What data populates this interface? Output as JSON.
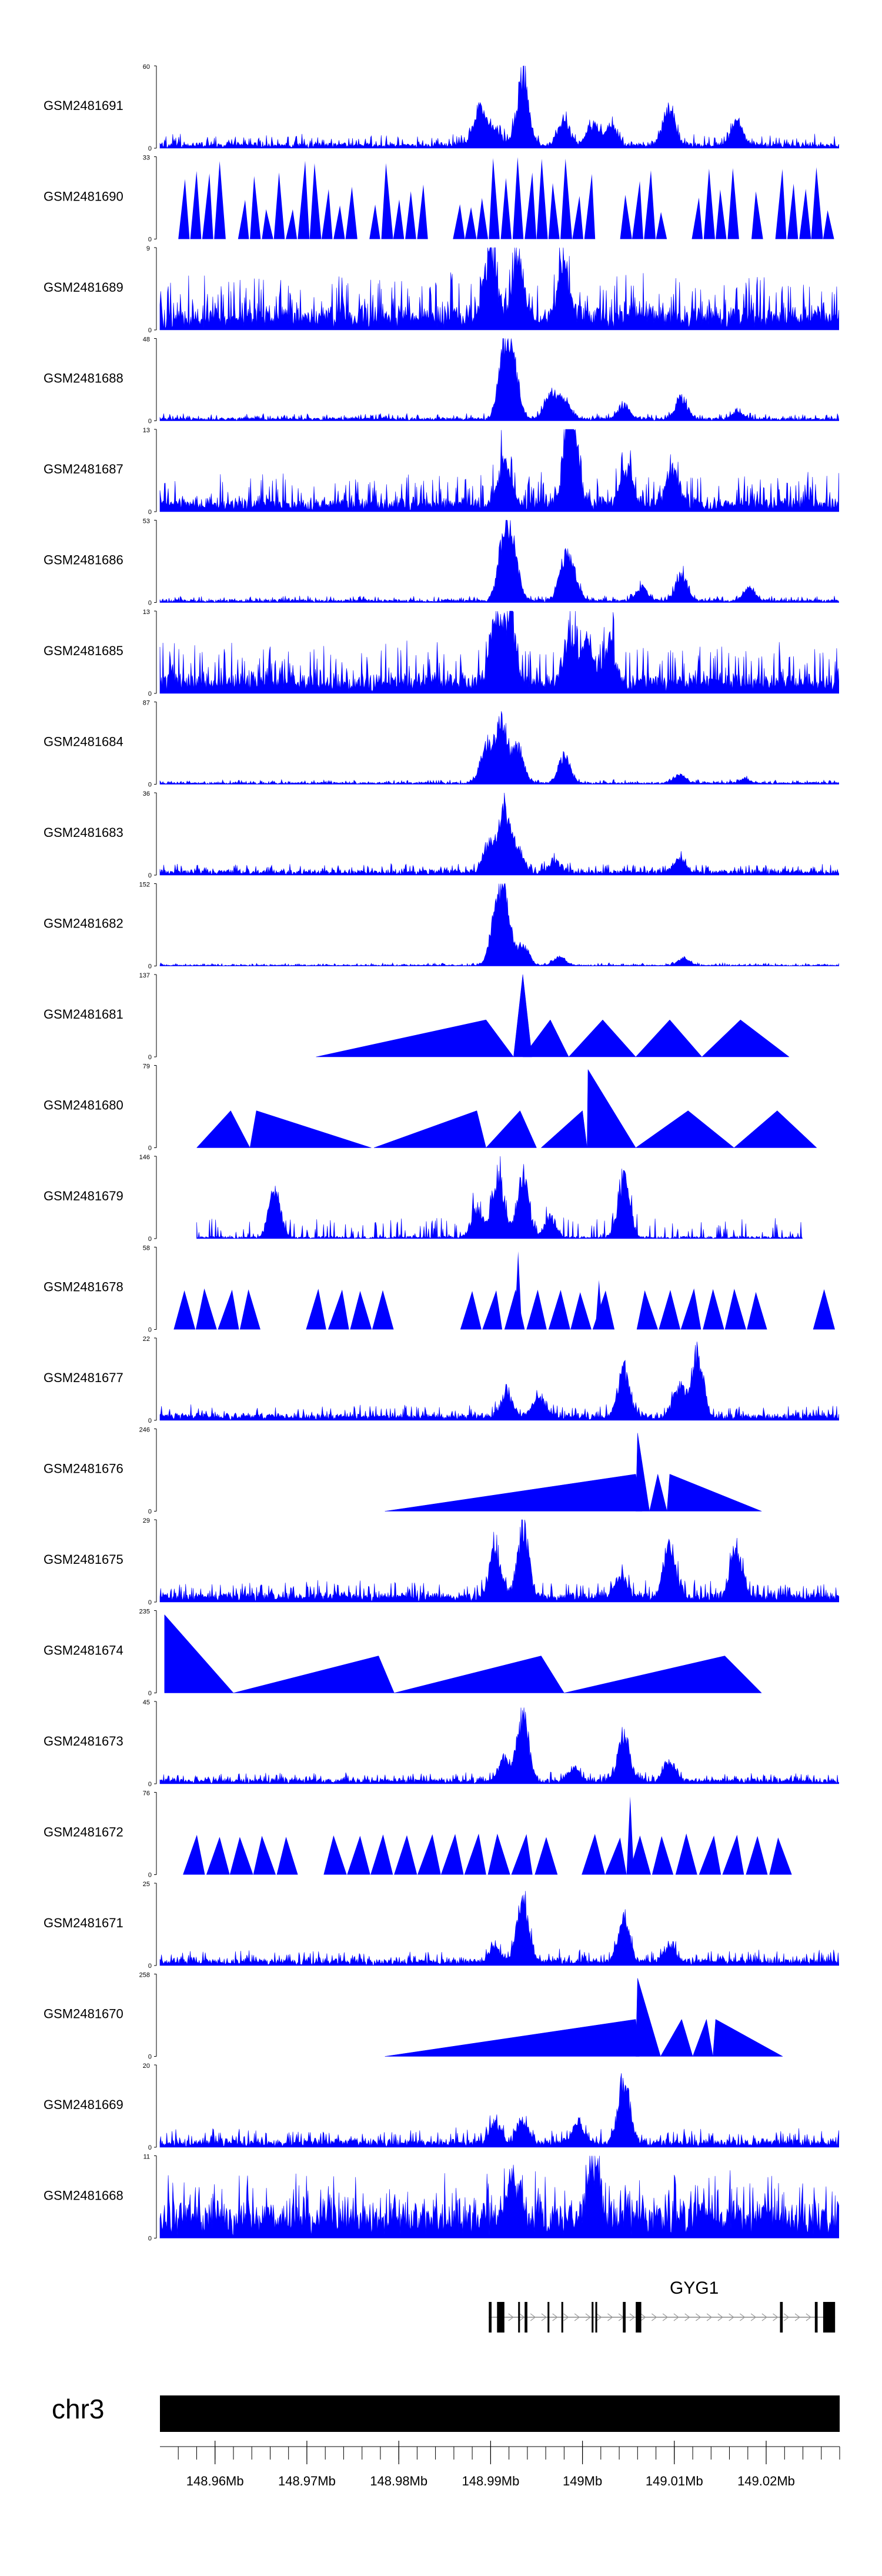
{
  "chart_data": {
    "type": "area",
    "title": "",
    "chromosome": "chr3",
    "x_unit": "Mb",
    "xlim": [
      148.954,
      149.028
    ],
    "axis_ticks": [
      {
        "value": 148.96,
        "label": "148.96Mb"
      },
      {
        "value": 148.97,
        "label": "148.97Mb"
      },
      {
        "value": 148.98,
        "label": "148.98Mb"
      },
      {
        "value": 148.99,
        "label": "148.99Mb"
      },
      {
        "value": 149.0,
        "label": "149Mb"
      },
      {
        "value": 149.01,
        "label": "149.01Mb"
      },
      {
        "value": 149.02,
        "label": "149.02Mb"
      }
    ],
    "minor_tick_step": 0.002,
    "tracks": [
      {
        "name": "GSM2481691",
        "ymax": 60,
        "ymax_label": "60",
        "ymin_label": "0",
        "mode": "dense",
        "baseline": 0.04,
        "noise": 0.14,
        "peaks": [
          [
            148.9888,
            0.55
          ],
          [
            148.9935,
            1.0
          ],
          [
            148.9905,
            0.25
          ],
          [
            148.998,
            0.35
          ],
          [
            149.0012,
            0.3
          ],
          [
            149.0032,
            0.25
          ],
          [
            149.0094,
            0.6
          ],
          [
            149.0168,
            0.35
          ]
        ]
      },
      {
        "name": "GSM2481690",
        "ymax": 33,
        "ymax_label": "33",
        "ymin_label": "0",
        "mode": "tri",
        "seed": 7,
        "count": 55,
        "lo": 0.3,
        "hi": 1.0
      },
      {
        "name": "GSM2481689",
        "ymax": 9,
        "ymax_label": "9",
        "ymin_label": "0",
        "mode": "dense",
        "baseline": 0.18,
        "noise": 0.55,
        "peaks": [
          [
            148.99,
            0.9
          ],
          [
            148.993,
            0.8
          ],
          [
            148.998,
            0.7
          ]
        ]
      },
      {
        "name": "GSM2481688",
        "ymax": 48,
        "ymax_label": "48",
        "ymin_label": "0",
        "mode": "dense",
        "baseline": 0.03,
        "noise": 0.07,
        "peaks": [
          [
            148.9915,
            0.95
          ],
          [
            148.9925,
            0.7
          ],
          [
            148.9965,
            0.4
          ],
          [
            148.998,
            0.3
          ],
          [
            149.0045,
            0.2
          ],
          [
            149.0108,
            0.3
          ],
          [
            149.017,
            0.1
          ]
        ]
      },
      {
        "name": "GSM2481687",
        "ymax": 13,
        "ymax_label": "13",
        "ymin_label": "0",
        "mode": "dense",
        "baseline": 0.1,
        "noise": 0.4,
        "peaks": [
          [
            148.9915,
            0.7
          ],
          [
            148.9985,
            0.95
          ],
          [
            148.999,
            0.7
          ],
          [
            149.0048,
            0.5
          ],
          [
            149.0098,
            0.5
          ]
        ]
      },
      {
        "name": "GSM2481686",
        "ymax": 53,
        "ymax_label": "53",
        "ymin_label": "0",
        "mode": "dense",
        "baseline": 0.03,
        "noise": 0.06,
        "peaks": [
          [
            148.9915,
            0.95
          ],
          [
            148.9925,
            0.6
          ],
          [
            148.998,
            0.55
          ],
          [
            148.999,
            0.35
          ],
          [
            149.0065,
            0.2
          ],
          [
            149.0108,
            0.4
          ],
          [
            149.0182,
            0.18
          ]
        ]
      },
      {
        "name": "GSM2481685",
        "ymax": 13,
        "ymax_label": "13",
        "ymin_label": "0",
        "mode": "dense",
        "baseline": 0.15,
        "noise": 0.5,
        "peaks": [
          [
            148.9905,
            0.85
          ],
          [
            148.992,
            1.0
          ],
          [
            148.9985,
            0.7
          ],
          [
            149.0005,
            0.6
          ],
          [
            149.003,
            0.6
          ]
        ]
      },
      {
        "name": "GSM2481684",
        "ymax": 87,
        "ymax_label": "87",
        "ymin_label": "0",
        "mode": "dense",
        "baseline": 0.02,
        "noise": 0.04,
        "peaks": [
          [
            148.9912,
            0.95
          ],
          [
            148.9895,
            0.55
          ],
          [
            148.993,
            0.5
          ],
          [
            148.998,
            0.4
          ],
          [
            149.0106,
            0.12
          ],
          [
            149.0176,
            0.06
          ]
        ]
      },
      {
        "name": "GSM2481683",
        "ymax": 36,
        "ymax_label": "36",
        "ymin_label": "0",
        "mode": "dense",
        "baseline": 0.05,
        "noise": 0.1,
        "peaks": [
          [
            148.9915,
            0.95
          ],
          [
            148.9898,
            0.4
          ],
          [
            148.993,
            0.3
          ],
          [
            148.997,
            0.18
          ],
          [
            149.0106,
            0.2
          ]
        ]
      },
      {
        "name": "GSM2481682",
        "ymax": 152,
        "ymax_label": "152",
        "ymin_label": "0",
        "mode": "dense",
        "baseline": 0.01,
        "noise": 0.03,
        "peaks": [
          [
            148.9915,
            0.95
          ],
          [
            148.9905,
            0.6
          ],
          [
            148.9935,
            0.3
          ],
          [
            148.9975,
            0.12
          ],
          [
            149.011,
            0.1
          ]
        ]
      },
      {
        "name": "GSM2481681",
        "ymax": 137,
        "ymax_label": "137",
        "ymin_label": "0",
        "mode": "tri_list",
        "tris": [
          [
            148.971,
            148.9895,
            148.9925,
            0.45
          ],
          [
            148.9925,
            148.9935,
            148.9945,
            1.0
          ],
          [
            148.9935,
            148.9965,
            148.9985,
            0.45
          ],
          [
            148.9985,
            149.0022,
            149.0058,
            0.45
          ],
          [
            149.0058,
            149.0095,
            149.013,
            0.45
          ],
          [
            149.013,
            149.0172,
            149.0225,
            0.45
          ]
        ]
      },
      {
        "name": "GSM2481680",
        "ymax": 79,
        "ymax_label": "79",
        "ymin_label": "0",
        "mode": "tri_list",
        "tris": [
          [
            148.958,
            148.9617,
            148.9638,
            0.45
          ],
          [
            148.9638,
            148.9645,
            148.977,
            0.45
          ],
          [
            148.9773,
            148.9885,
            148.9895,
            0.45
          ],
          [
            148.9895,
            148.9932,
            148.995,
            0.45
          ],
          [
            148.9955,
            149.0,
            149.0005,
            0.45
          ],
          [
            149.0005,
            149.0006,
            149.0058,
            0.95
          ],
          [
            149.0058,
            149.0115,
            149.0165,
            0.45
          ],
          [
            149.0165,
            149.0212,
            149.0255,
            0.45
          ]
        ]
      },
      {
        "name": "GSM2481679",
        "ymax": 146,
        "ymax_label": "146",
        "ymin_label": "0",
        "mode": "dense_sparse",
        "baseline": 0.0,
        "noise": 0.0,
        "start": 148.958,
        "end": 149.024,
        "peaks": [
          [
            148.9665,
            0.7
          ],
          [
            148.9908,
            0.95
          ],
          [
            148.9935,
            0.9
          ],
          [
            149.0045,
            0.85
          ],
          [
            148.9965,
            0.3
          ],
          [
            148.9885,
            0.4
          ]
        ]
      },
      {
        "name": "GSM2481678",
        "ymax": 58,
        "ymax_label": "58",
        "ymin_label": "0",
        "mode": "tri",
        "seed": 21,
        "count": 30,
        "lo": 0.45,
        "hi": 0.5,
        "start": 148.9555,
        "end": 149.0275,
        "spikes": [
          [
            148.993,
            0.95
          ],
          [
            149.0018,
            0.6
          ]
        ]
      },
      {
        "name": "GSM2481677",
        "ymax": 22,
        "ymax_label": "22",
        "ymin_label": "0",
        "mode": "dense",
        "baseline": 0.06,
        "noise": 0.14,
        "peaks": [
          [
            149.0045,
            0.7
          ],
          [
            149.0125,
            0.9
          ],
          [
            149.0105,
            0.45
          ],
          [
            148.9918,
            0.35
          ],
          [
            148.9952,
            0.3
          ]
        ]
      },
      {
        "name": "GSM2481676",
        "ymax": 246,
        "ymax_label": "246",
        "ymin_label": "0",
        "mode": "tri_list",
        "tris": [
          [
            148.9785,
            149.0058,
            149.0065,
            0.45
          ],
          [
            149.0058,
            149.006,
            149.0073,
            0.95
          ],
          [
            149.0073,
            149.0082,
            149.0092,
            0.45
          ],
          [
            149.0092,
            149.0095,
            149.0195,
            0.45
          ]
        ]
      },
      {
        "name": "GSM2481675",
        "ymax": 29,
        "ymax_label": "29",
        "ymin_label": "0",
        "mode": "dense",
        "baseline": 0.08,
        "noise": 0.2,
        "peaks": [
          [
            148.9905,
            0.7
          ],
          [
            148.9935,
            0.95
          ],
          [
            149.0095,
            0.8
          ],
          [
            149.0168,
            0.75
          ],
          [
            149.0042,
            0.35
          ]
        ]
      },
      {
        "name": "GSM2481674",
        "ymax": 235,
        "ymax_label": "235",
        "ymin_label": "0",
        "mode": "tri_list",
        "tris": [
          [
            148.9545,
            148.9545,
            148.962,
            0.95
          ],
          [
            148.962,
            148.9778,
            148.9795,
            0.45
          ],
          [
            148.9795,
            148.9955,
            148.998,
            0.45
          ],
          [
            148.998,
            149.0155,
            149.0195,
            0.45
          ]
        ]
      },
      {
        "name": "GSM2481673",
        "ymax": 45,
        "ymax_label": "45",
        "ymin_label": "0",
        "mode": "dense",
        "baseline": 0.05,
        "noise": 0.1,
        "peaks": [
          [
            148.9935,
            0.95
          ],
          [
            149.0045,
            0.65
          ],
          [
            148.9915,
            0.3
          ],
          [
            149.0095,
            0.3
          ],
          [
            148.999,
            0.2
          ]
        ]
      },
      {
        "name": "GSM2481672",
        "ymax": 76,
        "ymax_label": "76",
        "ymin_label": "0",
        "mode": "tri",
        "seed": 33,
        "count": 28,
        "lo": 0.45,
        "hi": 0.5,
        "start": 148.9565,
        "end": 149.028,
        "spikes": [
          [
            149.0052,
            0.95
          ]
        ]
      },
      {
        "name": "GSM2481671",
        "ymax": 25,
        "ymax_label": "25",
        "ymin_label": "0",
        "mode": "dense",
        "baseline": 0.06,
        "noise": 0.15,
        "peaks": [
          [
            148.9935,
            0.95
          ],
          [
            149.0045,
            0.6
          ],
          [
            149.0095,
            0.25
          ],
          [
            148.9905,
            0.2
          ]
        ]
      },
      {
        "name": "GSM2481670",
        "ymax": 258,
        "ymax_label": "258",
        "ymin_label": "0",
        "mode": "tri_list",
        "tris": [
          [
            148.9785,
            149.0058,
            149.0062,
            0.45
          ],
          [
            149.0058,
            149.006,
            149.0085,
            0.95
          ],
          [
            149.0085,
            149.0108,
            149.012,
            0.45
          ],
          [
            149.012,
            149.0135,
            149.0142,
            0.45
          ],
          [
            149.0142,
            149.0145,
            149.0218,
            0.45
          ]
        ]
      },
      {
        "name": "GSM2481669",
        "ymax": 20,
        "ymax_label": "20",
        "ymin_label": "0",
        "mode": "dense",
        "baseline": 0.07,
        "noise": 0.18,
        "peaks": [
          [
            149.0045,
            0.95
          ],
          [
            148.9905,
            0.3
          ],
          [
            148.9935,
            0.35
          ],
          [
            148.9995,
            0.3
          ]
        ]
      },
      {
        "name": "GSM2481668",
        "ymax": 11,
        "ymax_label": "11",
        "ymin_label": "0",
        "mode": "dense",
        "baseline": 0.35,
        "noise": 0.55,
        "peaks": [
          [
            149.0012,
            0.9
          ],
          [
            148.9925,
            0.6
          ]
        ]
      }
    ],
    "gene": {
      "name": "GYG1",
      "strand": "+",
      "start": 148.9898,
      "end": 149.0275,
      "exons": [
        [
          148.9898,
          148.9901
        ],
        [
          148.9907,
          148.9915
        ],
        [
          148.993,
          148.9932
        ],
        [
          148.9937,
          148.994
        ],
        [
          148.9962,
          148.9964
        ],
        [
          148.9977,
          148.9979
        ],
        [
          149.001,
          149.0012
        ],
        [
          149.0014,
          149.0016
        ],
        [
          149.0044,
          149.0047
        ],
        [
          149.0058,
          149.0064
        ],
        [
          149.0215,
          149.0218
        ],
        [
          149.0253,
          149.0256
        ],
        [
          149.0262,
          149.0275
        ]
      ]
    }
  }
}
